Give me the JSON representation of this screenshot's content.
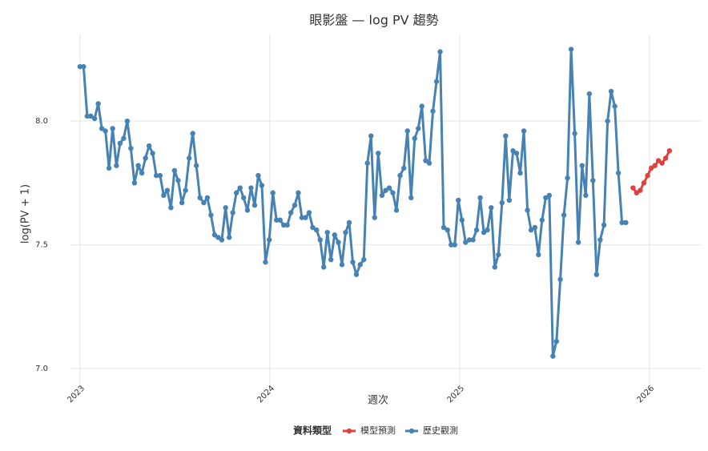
{
  "chart_data": {
    "type": "line",
    "title": "眼影盤 — log PV 趨勢",
    "x_label": "週次",
    "y_label": "log(PV + 1)",
    "legend_title": "資料類型",
    "legend": "bottom",
    "grid": true,
    "xlim": [
      2022.95,
      2026.27
    ],
    "xticks": [
      2023,
      2024,
      2025,
      2026
    ],
    "ylim": [
      6.9,
      8.35
    ],
    "yticks": [
      {
        "value": 7,
        "label": "7.0"
      },
      {
        "value": 7.5,
        "label": "7.5"
      },
      {
        "value": 8,
        "label": "8.0"
      }
    ],
    "series": [
      {
        "name": "模型預測",
        "color": "#e0413c",
        "x": [
          2025.913,
          2025.932,
          2025.951,
          2025.97,
          2025.99,
          2026.009,
          2026.028,
          2026.047,
          2026.066,
          2026.085,
          2026.105
        ],
        "values": [
          7.73,
          7.71,
          7.72,
          7.75,
          7.78,
          7.81,
          7.82,
          7.84,
          7.83,
          7.85,
          7.88
        ]
      },
      {
        "name": "歷史觀測",
        "color": "#4682b4",
        "x": [
          2023.0,
          2023.019,
          2023.038,
          2023.057,
          2023.077,
          2023.096,
          2023.115,
          2023.134,
          2023.153,
          2023.172,
          2023.192,
          2023.211,
          2023.23,
          2023.249,
          2023.268,
          2023.287,
          2023.307,
          2023.326,
          2023.345,
          2023.364,
          2023.383,
          2023.402,
          2023.422,
          2023.441,
          2023.46,
          2023.479,
          2023.498,
          2023.517,
          2023.537,
          2023.556,
          2023.575,
          2023.594,
          2023.613,
          2023.632,
          2023.652,
          2023.671,
          2023.69,
          2023.709,
          2023.728,
          2023.747,
          2023.767,
          2023.786,
          2023.805,
          2023.824,
          2023.843,
          2023.862,
          2023.882,
          2023.901,
          2023.92,
          2023.939,
          2023.958,
          2023.977,
          2023.997,
          2024.016,
          2024.035,
          2024.054,
          2024.073,
          2024.092,
          2024.111,
          2024.131,
          2024.15,
          2024.169,
          2024.188,
          2024.207,
          2024.226,
          2024.246,
          2024.265,
          2024.284,
          2024.303,
          2024.322,
          2024.341,
          2024.361,
          2024.38,
          2024.399,
          2024.418,
          2024.437,
          2024.456,
          2024.476,
          2024.495,
          2024.514,
          2024.533,
          2024.552,
          2024.571,
          2024.591,
          2024.61,
          2024.629,
          2024.648,
          2024.667,
          2024.686,
          2024.706,
          2024.725,
          2024.744,
          2024.763,
          2024.782,
          2024.801,
          2024.821,
          2024.84,
          2024.859,
          2024.878,
          2024.897,
          2024.916,
          2024.936,
          2024.955,
          2024.974,
          2024.993,
          2025.012,
          2025.031,
          2025.051,
          2025.07,
          2025.089,
          2025.108,
          2025.127,
          2025.146,
          2025.166,
          2025.185,
          2025.204,
          2025.223,
          2025.242,
          2025.261,
          2025.281,
          2025.3,
          2025.319,
          2025.338,
          2025.357,
          2025.376,
          2025.396,
          2025.415,
          2025.434,
          2025.453,
          2025.472,
          2025.491,
          2025.51,
          2025.53,
          2025.549,
          2025.568,
          2025.587,
          2025.606,
          2025.625,
          2025.645,
          2025.664,
          2025.683,
          2025.702,
          2025.721,
          2025.74,
          2025.76,
          2025.779,
          2025.798,
          2025.817,
          2025.836,
          2025.855,
          2025.875
        ],
        "values": [
          8.22,
          8.22,
          8.02,
          8.02,
          8.01,
          8.07,
          7.97,
          7.96,
          7.81,
          7.97,
          7.82,
          7.91,
          7.93,
          8.0,
          7.89,
          7.75,
          7.82,
          7.79,
          7.85,
          7.9,
          7.87,
          7.78,
          7.78,
          7.7,
          7.72,
          7.65,
          7.8,
          7.76,
          7.67,
          7.72,
          7.85,
          7.95,
          7.82,
          7.69,
          7.67,
          7.69,
          7.62,
          7.54,
          7.53,
          7.52,
          7.65,
          7.53,
          7.63,
          7.71,
          7.73,
          7.69,
          7.64,
          7.73,
          7.66,
          7.78,
          7.74,
          7.43,
          7.52,
          7.71,
          7.6,
          7.6,
          7.58,
          7.58,
          7.63,
          7.66,
          7.71,
          7.61,
          7.61,
          7.63,
          7.57,
          7.56,
          7.52,
          7.41,
          7.55,
          7.44,
          7.54,
          7.51,
          7.42,
          7.55,
          7.59,
          7.43,
          7.38,
          7.42,
          7.44,
          7.83,
          7.94,
          7.61,
          7.87,
          7.7,
          7.72,
          7.73,
          7.71,
          7.64,
          7.78,
          7.81,
          7.96,
          7.69,
          7.93,
          7.97,
          8.06,
          7.84,
          7.83,
          8.04,
          8.16,
          8.28,
          7.57,
          7.56,
          7.5,
          7.5,
          7.68,
          7.6,
          7.51,
          7.52,
          7.52,
          7.56,
          7.69,
          7.55,
          7.56,
          7.65,
          7.41,
          7.46,
          7.67,
          7.94,
          7.68,
          7.88,
          7.87,
          7.79,
          7.96,
          7.64,
          7.56,
          7.57,
          7.46,
          7.6,
          7.69,
          7.7,
          7.05,
          7.11,
          7.36,
          7.62,
          7.77,
          8.29,
          7.95,
          7.51,
          7.82,
          7.7,
          8.11,
          7.76,
          7.38,
          7.52,
          7.58,
          8.0,
          8.12,
          8.06,
          7.79,
          7.59,
          7.59
        ]
      }
    ]
  }
}
